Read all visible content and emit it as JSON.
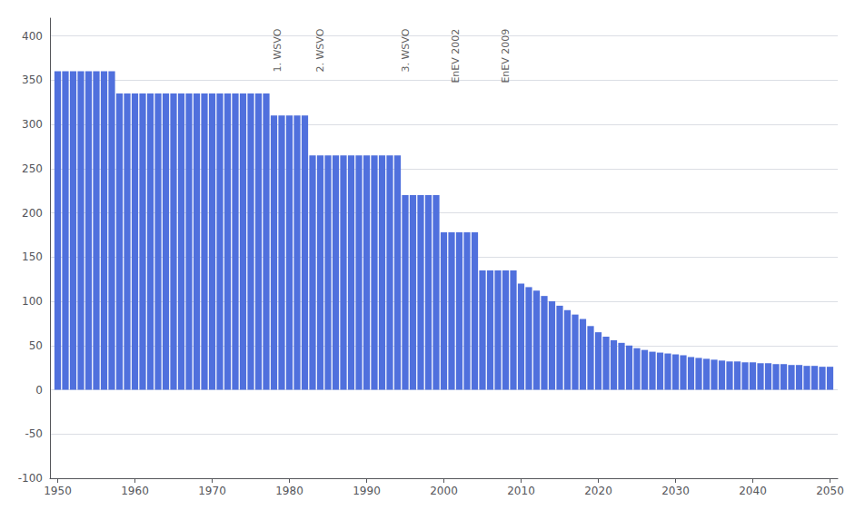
{
  "chart_data": {
    "type": "bar",
    "x": [
      1950,
      1951,
      1952,
      1953,
      1954,
      1955,
      1956,
      1957,
      1958,
      1959,
      1960,
      1961,
      1962,
      1963,
      1964,
      1965,
      1966,
      1967,
      1968,
      1969,
      1970,
      1971,
      1972,
      1973,
      1974,
      1975,
      1976,
      1977,
      1978,
      1979,
      1980,
      1981,
      1982,
      1983,
      1984,
      1985,
      1986,
      1987,
      1988,
      1989,
      1990,
      1991,
      1992,
      1993,
      1994,
      1995,
      1996,
      1997,
      1998,
      1999,
      2000,
      2001,
      2002,
      2003,
      2004,
      2005,
      2006,
      2007,
      2008,
      2009,
      2010,
      2011,
      2012,
      2013,
      2014,
      2015,
      2016,
      2017,
      2018,
      2019,
      2020,
      2021,
      2022,
      2023,
      2024,
      2025,
      2026,
      2027,
      2028,
      2029,
      2030,
      2031,
      2032,
      2033,
      2034,
      2035,
      2036,
      2037,
      2038,
      2039,
      2040,
      2041,
      2042,
      2043,
      2044,
      2045,
      2046,
      2047,
      2048,
      2049,
      2050
    ],
    "values": [
      360,
      360,
      360,
      360,
      360,
      360,
      360,
      360,
      335,
      335,
      335,
      335,
      335,
      335,
      335,
      335,
      335,
      335,
      335,
      335,
      335,
      335,
      335,
      335,
      335,
      335,
      335,
      335,
      310,
      310,
      310,
      310,
      310,
      265,
      265,
      265,
      265,
      265,
      265,
      265,
      265,
      265,
      265,
      265,
      265,
      220,
      220,
      220,
      220,
      220,
      178,
      178,
      178,
      178,
      178,
      135,
      135,
      135,
      135,
      135,
      120,
      116,
      112,
      106,
      100,
      95,
      90,
      85,
      80,
      72,
      65,
      60,
      56,
      53,
      50,
      47,
      45,
      43,
      42,
      41,
      40,
      39,
      37,
      36,
      35,
      34,
      33,
      32,
      32,
      31,
      31,
      30,
      30,
      29,
      29,
      28,
      28,
      27,
      27,
      26,
      26
    ],
    "xlim": [
      1949.0,
      2051.0
    ],
    "xticks": [
      1950,
      1960,
      1970,
      1980,
      1990,
      2000,
      2010,
      2020,
      2030,
      2040,
      2050
    ],
    "ylim": [
      -100,
      420
    ],
    "yticks": [
      -100,
      -50,
      0,
      50,
      100,
      150,
      200,
      250,
      300,
      350,
      400
    ],
    "grid": true,
    "annotations": [
      {
        "text": "1. WSVO",
        "x": 1978.5,
        "y": 408
      },
      {
        "text": "2. WSVO",
        "x": 1984.0,
        "y": 408
      },
      {
        "text": "3. WSVO",
        "x": 1995.0,
        "y": 408
      },
      {
        "text": "EnEV 2002",
        "x": 2001.5,
        "y": 408
      },
      {
        "text": "EnEV 2009",
        "x": 2008.0,
        "y": 408
      }
    ]
  }
}
